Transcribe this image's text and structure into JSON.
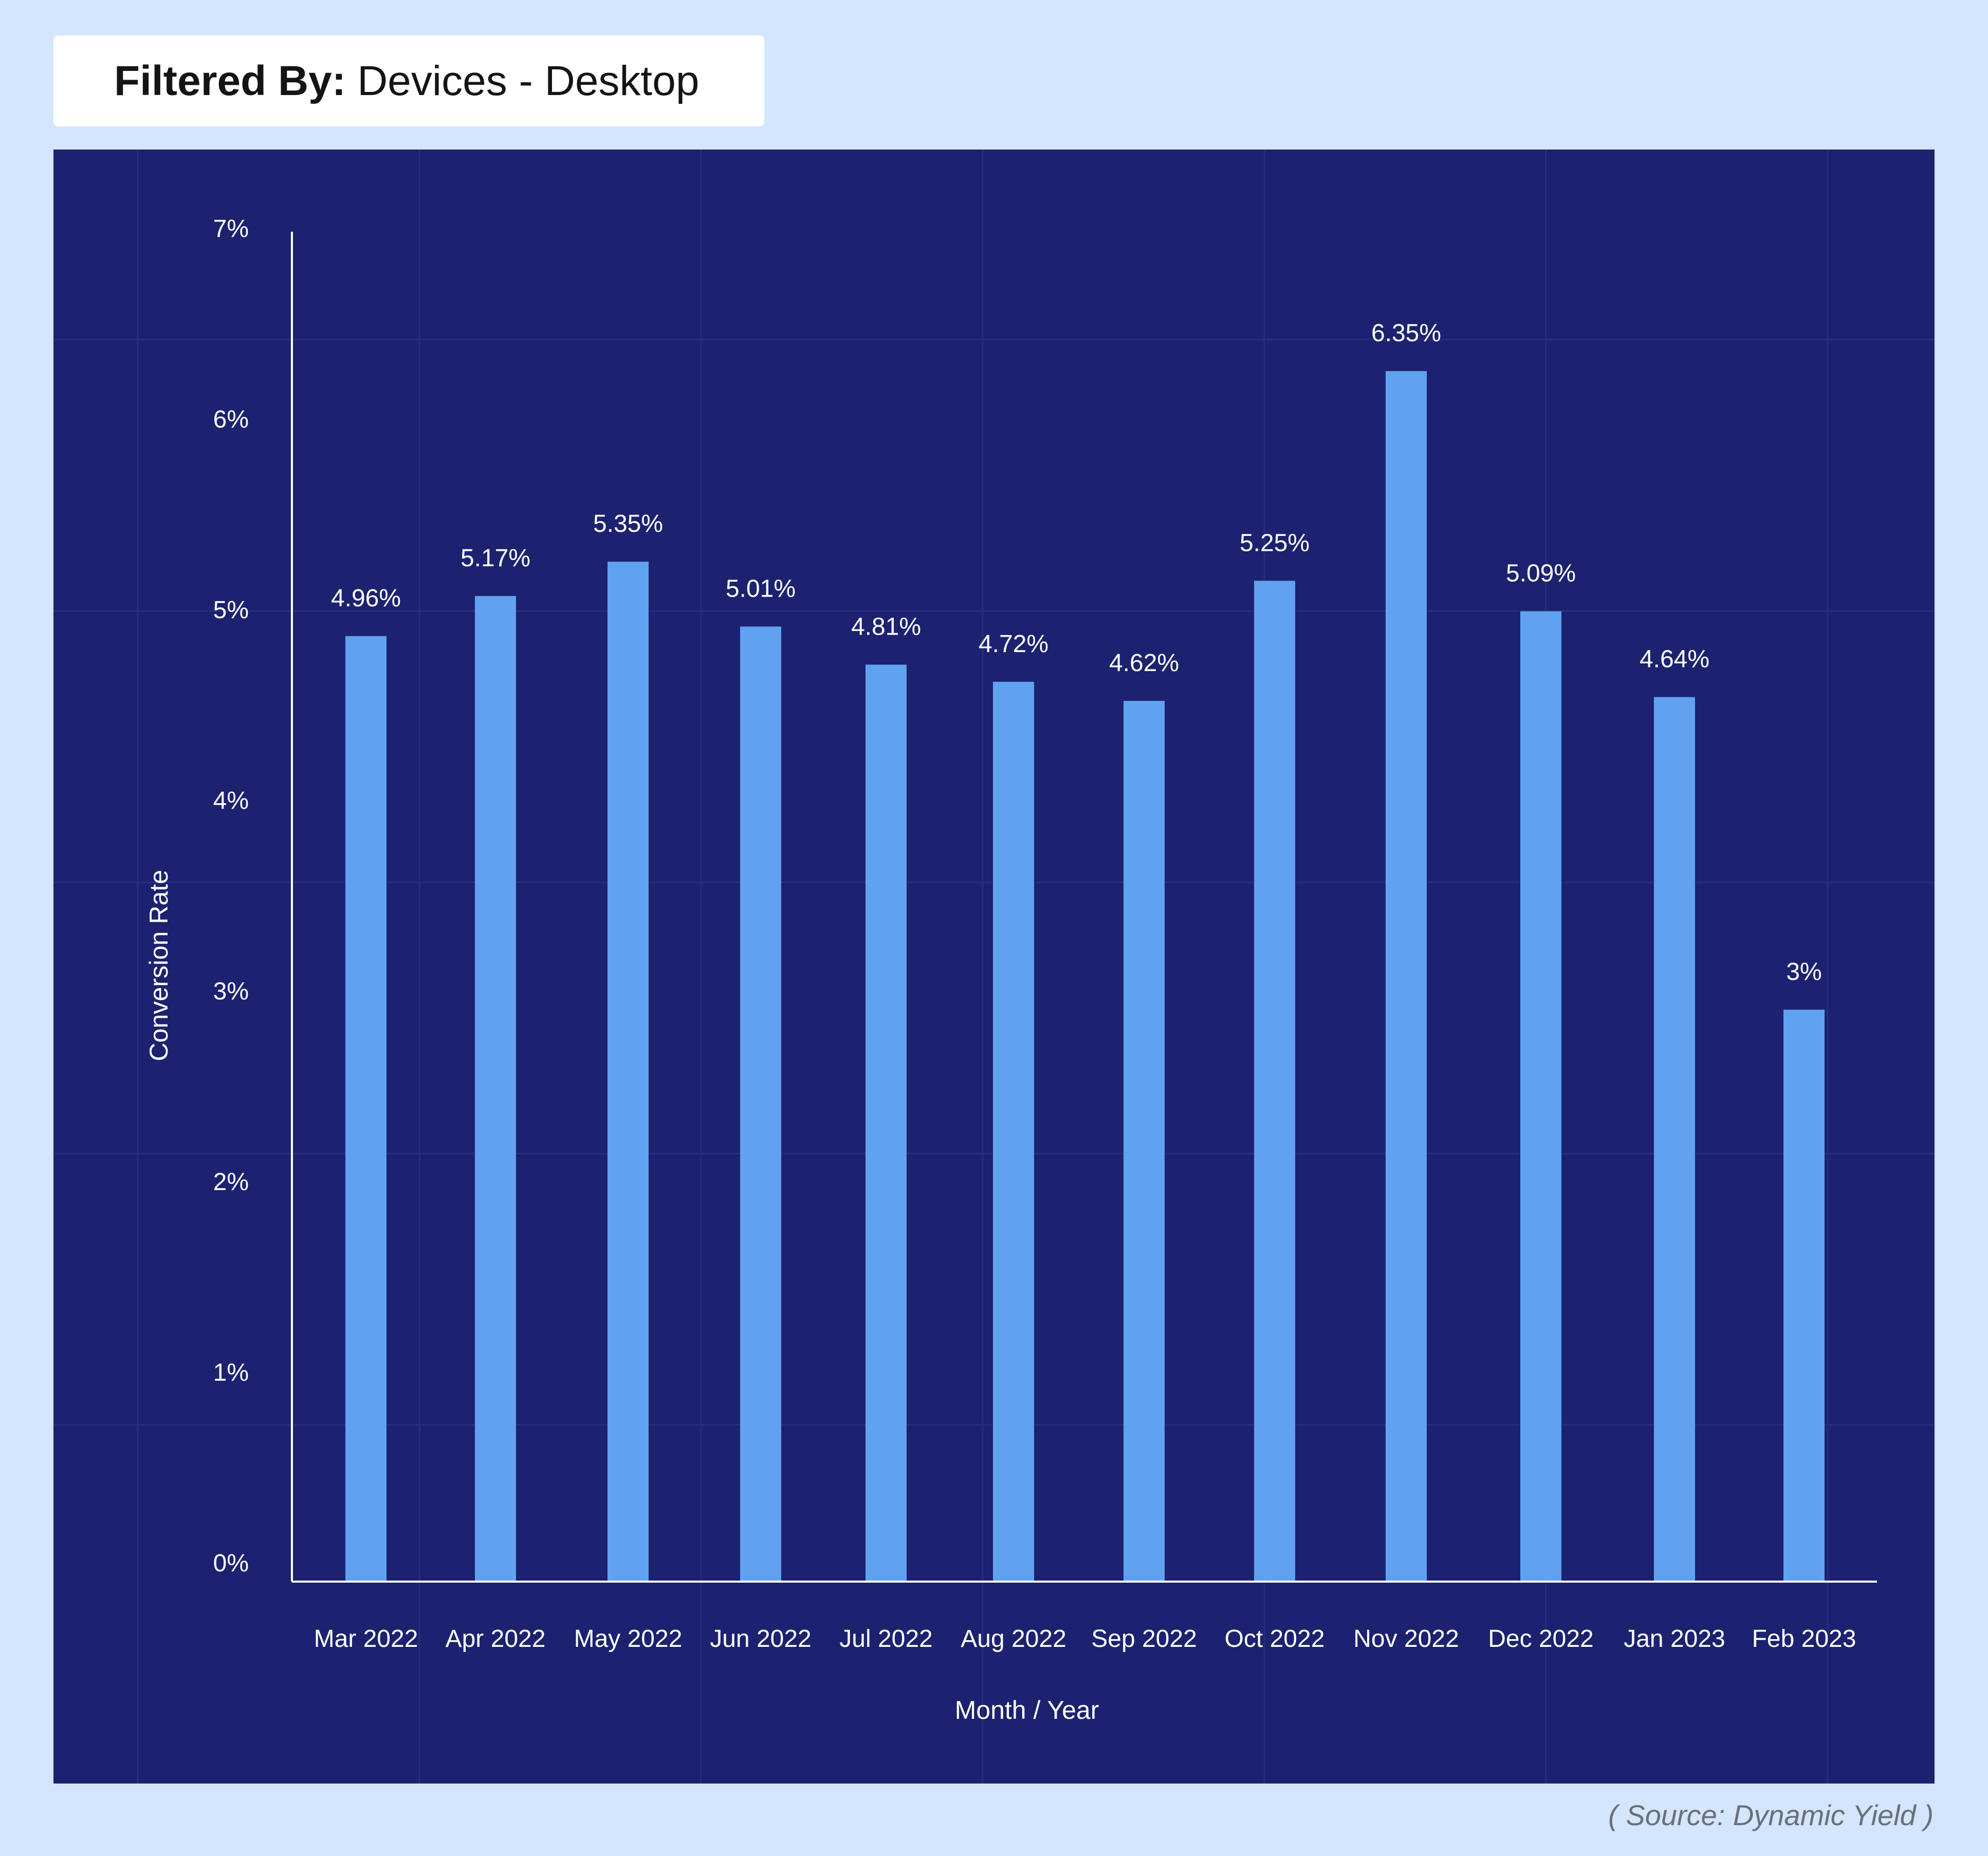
{
  "filter": {
    "label": "Filtered By:",
    "value": "Devices - Desktop"
  },
  "source": "( Source: Dynamic Yield )",
  "colors": {
    "page_background": "#d3e6fe",
    "panel_background": "#1c2270",
    "bar": "#60a1f0",
    "text": "#ffffff",
    "gridline": "#262d7c"
  },
  "chart_data": {
    "type": "bar",
    "title": "",
    "xlabel": "Month / Year",
    "ylabel": "Conversion Rate",
    "categories": [
      "Mar 2022",
      "Apr 2022",
      "May 2022",
      "Jun 2022",
      "Jul 2022",
      "Aug 2022",
      "Sep 2022",
      "Oct 2022",
      "Nov 2022",
      "Dec 2022",
      "Jan 2023",
      "Feb 2023"
    ],
    "values": [
      4.96,
      5.17,
      5.35,
      5.01,
      4.81,
      4.72,
      4.62,
      5.25,
      6.35,
      5.09,
      4.64,
      3
    ],
    "value_labels": [
      "4.96%",
      "5.17%",
      "5.35%",
      "5.01%",
      "4.81%",
      "4.72%",
      "4.62%",
      "5.25%",
      "6.35%",
      "5.09%",
      "4.64%",
      "3%"
    ],
    "yticks": [
      0,
      1,
      2,
      3,
      4,
      5,
      6,
      7
    ],
    "ytick_labels": [
      "0%",
      "1%",
      "2%",
      "3%",
      "4%",
      "5%",
      "6%",
      "7%"
    ],
    "ylim": [
      0,
      7
    ],
    "grid": true,
    "legend": "none"
  }
}
